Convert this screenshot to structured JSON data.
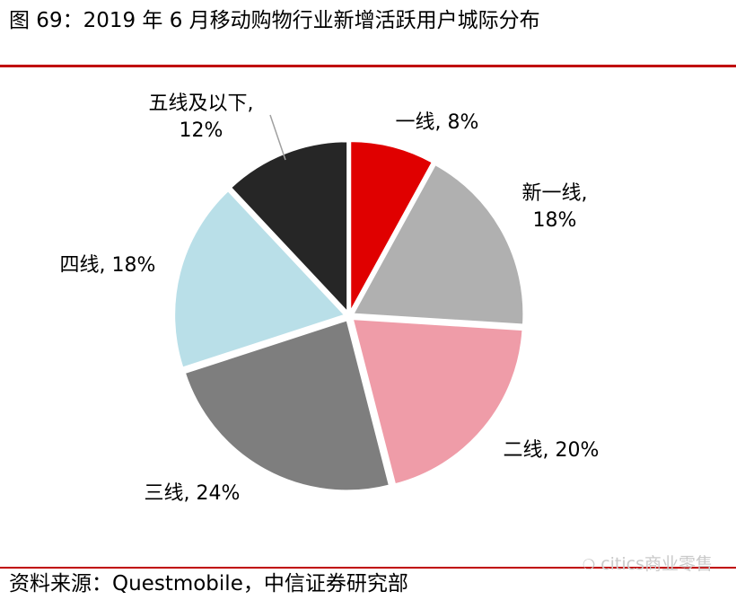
{
  "figure": {
    "title": "图 69：2019 年 6 月移动购物行业新增活跃用户城际分布",
    "source": "资料来源：Questmobile，中信证券研究部",
    "watermark": "citics商业零售"
  },
  "chart_data": {
    "type": "pie",
    "title": "",
    "slices": [
      {
        "label": "一线",
        "value": 8,
        "display": "8%",
        "color": "#e00000"
      },
      {
        "label": "新一线",
        "value": 18,
        "display": "18%",
        "color": "#b0b0b0"
      },
      {
        "label": "二线",
        "value": 20,
        "display": "20%",
        "color": "#ef9ca8"
      },
      {
        "label": "三线",
        "value": 24,
        "display": "24%",
        "color": "#7e7e7e"
      },
      {
        "label": "四线",
        "value": 18,
        "display": "18%",
        "color": "#b9dfe8"
      },
      {
        "label": "五线及以下",
        "value": 12,
        "display": "12%",
        "color": "#262626"
      }
    ],
    "labels_text": [
      {
        "line1": "一线, 8%",
        "line2": ""
      },
      {
        "line1": "新一线,",
        "line2": "18%"
      },
      {
        "line1": "二线, 20%",
        "line2": ""
      },
      {
        "line1": "三线, 24%",
        "line2": ""
      },
      {
        "line1": "四线, 18%",
        "line2": ""
      },
      {
        "line1": "五线及以下,",
        "line2": "12%"
      }
    ],
    "legend": "none",
    "start": "12 o'clock, clockwise"
  }
}
